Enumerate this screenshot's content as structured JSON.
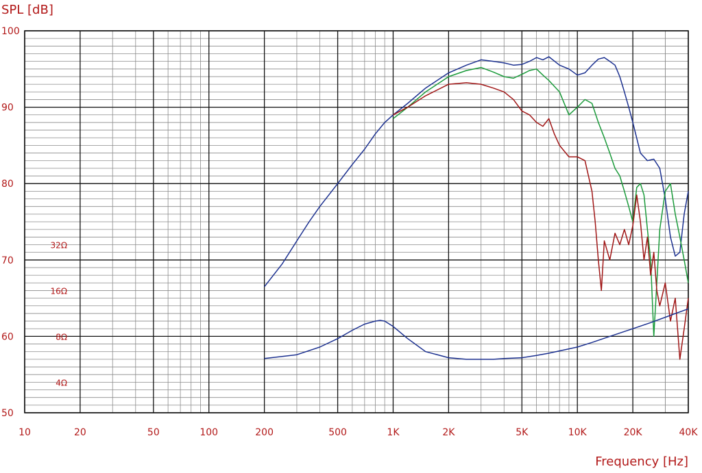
{
  "chart_data": {
    "type": "line",
    "ylabel": "SPL [dB]",
    "xlabel": "Frequency  [Hz]",
    "x_scale": "log",
    "xlim": [
      10,
      40000
    ],
    "ylim": [
      50,
      100
    ],
    "grid": true,
    "x_ticks": [
      {
        "value": 10,
        "label": "10"
      },
      {
        "value": 20,
        "label": "20"
      },
      {
        "value": 50,
        "label": "50"
      },
      {
        "value": 100,
        "label": "100"
      },
      {
        "value": 200,
        "label": "200"
      },
      {
        "value": 500,
        "label": "500"
      },
      {
        "value": 1000,
        "label": "1K"
      },
      {
        "value": 2000,
        "label": "2K"
      },
      {
        "value": 5000,
        "label": "5K"
      },
      {
        "value": 10000,
        "label": "10K"
      },
      {
        "value": 20000,
        "label": "20K"
      },
      {
        "value": 40000,
        "label": "40K"
      }
    ],
    "y_ticks": [
      {
        "value": 50,
        "label": "50"
      },
      {
        "value": 60,
        "label": "60"
      },
      {
        "value": 70,
        "label": "70"
      },
      {
        "value": 80,
        "label": "80"
      },
      {
        "value": 90,
        "label": "90"
      },
      {
        "value": 100,
        "label": "100"
      }
    ],
    "impedance_ticks": [
      {
        "value": 72,
        "label": "32Ω"
      },
      {
        "value": 66,
        "label": "16Ω"
      },
      {
        "value": 60,
        "label": "8Ω"
      },
      {
        "value": 54,
        "label": "4Ω"
      }
    ],
    "series": [
      {
        "color": "#1a2f8f",
        "x": [
          200,
          250,
          300,
          350,
          400,
          500,
          600,
          700,
          800,
          900,
          1000,
          1200,
          1500,
          2000,
          2500,
          3000,
          3500,
          4000,
          4500,
          5000,
          5500,
          6000,
          6500,
          7000,
          8000,
          9000,
          10000,
          11000,
          12000,
          13000,
          14000,
          15000,
          16000,
          17000,
          18000,
          19000,
          20000,
          22000,
          24000,
          26000,
          28000,
          30000,
          32000,
          34000,
          36000,
          38000,
          40000
        ],
        "y": [
          66.5,
          69.5,
          72.5,
          75.0,
          77.0,
          80.0,
          82.5,
          84.5,
          86.5,
          88.0,
          89.0,
          90.5,
          92.5,
          94.5,
          95.5,
          96.2,
          96.0,
          95.8,
          95.5,
          95.6,
          96.0,
          96.5,
          96.2,
          96.6,
          95.5,
          95.0,
          94.2,
          94.5,
          95.5,
          96.3,
          96.5,
          96.0,
          95.5,
          94.0,
          92.0,
          90.0,
          88.0,
          84.0,
          83.0,
          83.2,
          82.0,
          78.0,
          73.0,
          70.5,
          71.0,
          76.0,
          79.0
        ]
      },
      {
        "color": "#1a9a3a",
        "x": [
          1000,
          1200,
          1500,
          2000,
          2500,
          3000,
          3500,
          4000,
          4500,
          5000,
          5500,
          6000,
          6500,
          7000,
          8000,
          9000,
          10000,
          11000,
          12000,
          13000,
          14000,
          15000,
          16000,
          17000,
          18000,
          19000,
          20000,
          21000,
          22000,
          23000,
          24000,
          25000,
          26000,
          27000,
          28000,
          30000,
          32000,
          34000,
          36000,
          38000,
          40000
        ],
        "y": [
          88.5,
          90.0,
          92.0,
          94.0,
          94.8,
          95.2,
          94.6,
          94.0,
          93.8,
          94.3,
          94.8,
          95.0,
          94.2,
          93.5,
          92.0,
          89.0,
          90.0,
          91.0,
          90.5,
          88.0,
          86.0,
          84.0,
          82.0,
          81.0,
          79.0,
          77.0,
          75.0,
          79.5,
          80.0,
          78.5,
          74.0,
          70.0,
          60.0,
          67.0,
          74.0,
          79.0,
          80.0,
          76.0,
          73.0,
          70.0,
          67.0
        ]
      },
      {
        "color": "#a01515",
        "x": [
          1000,
          1200,
          1500,
          2000,
          2500,
          3000,
          3500,
          4000,
          4500,
          5000,
          5500,
          6000,
          6500,
          7000,
          7500,
          8000,
          9000,
          10000,
          11000,
          12000,
          12500,
          13000,
          13500,
          14000,
          15000,
          16000,
          17000,
          18000,
          19000,
          20000,
          21000,
          22000,
          23000,
          24000,
          25000,
          26000,
          27000,
          28000,
          30000,
          32000,
          34000,
          36000,
          38000,
          40000
        ],
        "y": [
          89.0,
          90.0,
          91.5,
          93.0,
          93.2,
          93.0,
          92.5,
          92.0,
          91.0,
          89.5,
          89.0,
          88.0,
          87.5,
          88.5,
          86.5,
          85.0,
          83.5,
          83.5,
          83.0,
          79.0,
          75.0,
          70.0,
          66.0,
          72.5,
          70.0,
          73.5,
          72.0,
          74.0,
          72.0,
          74.5,
          78.5,
          75.0,
          70.0,
          73.0,
          68.0,
          71.0,
          66.0,
          64.0,
          67.0,
          62.0,
          65.0,
          57.0,
          61.0,
          65.0
        ]
      },
      {
        "color": "#1a2f8f",
        "x": [
          200,
          300,
          400,
          500,
          600,
          700,
          800,
          850,
          900,
          1000,
          1200,
          1500,
          2000,
          2500,
          3000,
          3500,
          4000,
          5000,
          6000,
          7000,
          8000,
          10000,
          12000,
          15000,
          20000,
          25000,
          30000,
          35000,
          40000
        ],
        "y": [
          57.1,
          57.6,
          58.6,
          59.7,
          60.8,
          61.6,
          62.0,
          62.1,
          62.0,
          61.3,
          59.7,
          58.0,
          57.2,
          57.0,
          57.0,
          57.0,
          57.1,
          57.2,
          57.5,
          57.8,
          58.1,
          58.6,
          59.2,
          60.0,
          61.0,
          61.8,
          62.5,
          63.1,
          63.6
        ]
      }
    ]
  }
}
